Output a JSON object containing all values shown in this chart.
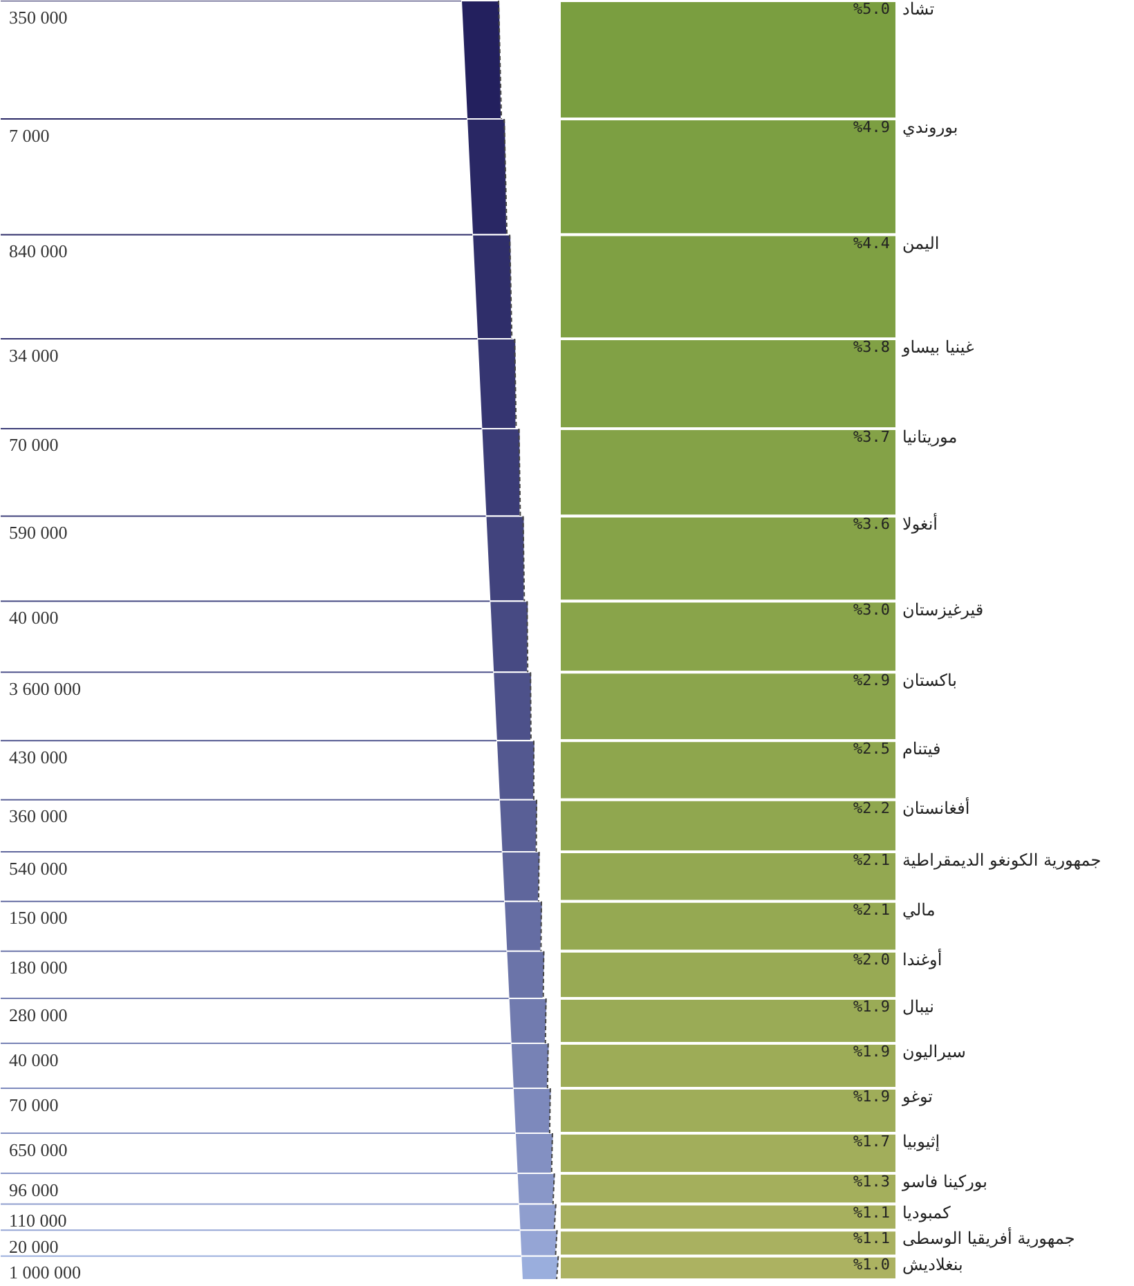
{
  "chart_data": {
    "type": "other",
    "categories": [
      "تشاد",
      "بوروندي",
      "اليمن",
      "غينيا بيساو",
      "موريتانيا",
      "أنغولا",
      "قيرغيزستان",
      "باكستان",
      "فيتنام",
      "أفغانستان",
      "جمهورية الكونغو الديمقراطية",
      "مالي",
      "أوغندا",
      "نيبال",
      "سيراليون",
      "توغو",
      "إثيوبيا",
      "بوركينا فاسو",
      "كمبوديا",
      "جمهورية أفريقيا الوسطى",
      "بنغلاديش"
    ],
    "series": [
      {
        "type": "bar",
        "values": [
          5.0,
          4.9,
          4.4,
          3.8,
          3.7,
          3.6,
          3.0,
          2.9,
          2.5,
          2.2,
          2.1,
          2.1,
          2.0,
          1.9,
          1.9,
          1.9,
          1.7,
          1.3,
          1.1,
          1.1,
          1.0
        ],
        "value_labels": [
          "%5.0",
          "%4.9",
          "%4.4",
          "%3.8",
          "%3.7",
          "%3.6",
          "%3.0",
          "%2.9",
          "%2.5",
          "%2.2",
          "%2.1",
          "%2.1",
          "%2.0",
          "%1.9",
          "%1.9",
          "%1.9",
          "%1.7",
          "%1.3",
          "%1.1",
          "%1.1",
          "%1.0"
        ],
        "colors": [
          "#7a9e40",
          "#7c9f42",
          "#7fa043",
          "#81a145",
          "#84a247",
          "#86a348",
          "#89a44a",
          "#8ba54c",
          "#8ea64d",
          "#90a74f",
          "#93a851",
          "#95a952",
          "#98aa54",
          "#9aab56",
          "#9dac57",
          "#9fad59",
          "#a2ae5b",
          "#a4af5c",
          "#a7b05e",
          "#a9b160",
          "#acb261"
        ]
      },
      {
        "type": "other",
        "values": [
          350000,
          7000,
          840000,
          34000,
          70000,
          590000,
          40000,
          3600000,
          430000,
          360000,
          540000,
          150000,
          180000,
          280000,
          40000,
          70000,
          650000,
          96000,
          110000,
          20000,
          1000000
        ],
        "value_labels": [
          "350 000",
          "7 000",
          "840 000",
          "34 000",
          "70 000",
          "590 000",
          "40 000",
          "3 600 000",
          "430 000",
          "360 000",
          "540 000",
          "150 000",
          "180 000",
          "280 000",
          "40 000",
          "70 000",
          "650 000",
          "96 000",
          "110 000",
          "20 000",
          "1 000 000"
        ],
        "colors": [
          "#23205e",
          "#292764",
          "#2f2e6a",
          "#353571",
          "#3b3c77",
          "#41437d",
          "#474a83",
          "#4d518a",
          "#535890",
          "#595f96",
          "#5f669c",
          "#656da3",
          "#6b74a9",
          "#717baf",
          "#7782b5",
          "#7d89bc",
          "#8390c2",
          "#8997c8",
          "#8f9ece",
          "#95a5d5",
          "#9aaedd"
        ]
      }
    ]
  }
}
